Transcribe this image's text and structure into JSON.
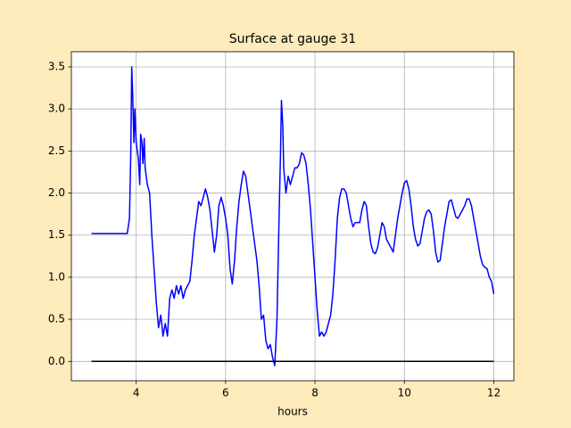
{
  "chart_data": {
    "type": "line",
    "title": "Surface at gauge 31",
    "xlabel": "hours",
    "xlim": [
      2.55,
      12.45
    ],
    "ylim": [
      -0.23,
      3.68
    ],
    "xticks": [
      4,
      6,
      8,
      10,
      12
    ],
    "yticks": [
      {
        "value": 0,
        "label": "0.0"
      },
      {
        "value": 0.5,
        "label": "0.5"
      },
      {
        "value": 1,
        "label": "1.0"
      },
      {
        "value": 1.5,
        "label": "1.5"
      },
      {
        "value": 2,
        "label": "2.0"
      },
      {
        "value": 2.5,
        "label": "2.5"
      },
      {
        "value": 3,
        "label": "3.0"
      },
      {
        "value": 3.5,
        "label": "3.5"
      }
    ],
    "grid": true,
    "series": [
      {
        "color": "#0000ff",
        "x": [
          3.0,
          3.5,
          3.8,
          3.85,
          3.88,
          3.9,
          3.92,
          3.95,
          3.97,
          4.0,
          4.05,
          4.08,
          4.1,
          4.13,
          4.15,
          4.18,
          4.2,
          4.25,
          4.3,
          4.35,
          4.4,
          4.45,
          4.5,
          4.55,
          4.6,
          4.65,
          4.7,
          4.75,
          4.8,
          4.85,
          4.9,
          4.95,
          5.0,
          5.05,
          5.1,
          5.15,
          5.2,
          5.25,
          5.3,
          5.35,
          5.4,
          5.45,
          5.5,
          5.55,
          5.6,
          5.65,
          5.7,
          5.75,
          5.8,
          5.85,
          5.9,
          5.95,
          6.0,
          6.05,
          6.1,
          6.15,
          6.2,
          6.25,
          6.3,
          6.35,
          6.4,
          6.45,
          6.5,
          6.55,
          6.6,
          6.65,
          6.7,
          6.75,
          6.8,
          6.85,
          6.9,
          6.95,
          7.0,
          7.05,
          7.1,
          7.15,
          7.2,
          7.23,
          7.25,
          7.28,
          7.3,
          7.35,
          7.4,
          7.45,
          7.5,
          7.55,
          7.6,
          7.65,
          7.7,
          7.75,
          7.8,
          7.85,
          7.9,
          7.95,
          8.0,
          8.05,
          8.1,
          8.15,
          8.2,
          8.25,
          8.3,
          8.35,
          8.4,
          8.45,
          8.5,
          8.55,
          8.6,
          8.65,
          8.7,
          8.75,
          8.8,
          8.85,
          8.9,
          8.95,
          9.0,
          9.05,
          9.1,
          9.15,
          9.2,
          9.25,
          9.3,
          9.35,
          9.4,
          9.45,
          9.5,
          9.55,
          9.6,
          9.65,
          9.7,
          9.75,
          9.8,
          9.85,
          9.9,
          9.95,
          10.0,
          10.05,
          10.1,
          10.15,
          10.2,
          10.25,
          10.3,
          10.35,
          10.4,
          10.45,
          10.5,
          10.55,
          10.6,
          10.65,
          10.7,
          10.75,
          10.8,
          10.85,
          10.9,
          10.95,
          11.0,
          11.05,
          11.1,
          11.15,
          11.2,
          11.25,
          11.3,
          11.35,
          11.4,
          11.45,
          11.5,
          11.55,
          11.6,
          11.65,
          11.7,
          11.75,
          11.8,
          11.85,
          11.9,
          11.95,
          12.0
        ],
        "values": [
          1.52,
          1.52,
          1.52,
          1.7,
          2.5,
          3.5,
          3.2,
          2.6,
          3.0,
          2.6,
          2.4,
          2.1,
          2.7,
          2.6,
          2.35,
          2.65,
          2.3,
          2.1,
          2.0,
          1.5,
          1.1,
          0.7,
          0.4,
          0.55,
          0.3,
          0.45,
          0.3,
          0.75,
          0.85,
          0.75,
          0.9,
          0.8,
          0.9,
          0.75,
          0.85,
          0.9,
          0.95,
          1.2,
          1.5,
          1.7,
          1.9,
          1.85,
          1.95,
          2.05,
          1.95,
          1.8,
          1.55,
          1.3,
          1.5,
          1.85,
          1.95,
          1.85,
          1.7,
          1.5,
          1.1,
          0.92,
          1.2,
          1.6,
          1.9,
          2.1,
          2.26,
          2.2,
          2.0,
          1.8,
          1.6,
          1.4,
          1.2,
          0.9,
          0.5,
          0.55,
          0.25,
          0.15,
          0.2,
          0.05,
          -0.05,
          0.5,
          1.8,
          2.5,
          3.1,
          2.8,
          2.3,
          2.0,
          2.2,
          2.1,
          2.2,
          2.3,
          2.3,
          2.35,
          2.48,
          2.45,
          2.35,
          2.1,
          1.8,
          1.4,
          1.0,
          0.6,
          0.3,
          0.35,
          0.3,
          0.35,
          0.45,
          0.55,
          0.8,
          1.2,
          1.7,
          1.95,
          2.05,
          2.05,
          2.0,
          1.85,
          1.7,
          1.6,
          1.65,
          1.65,
          1.65,
          1.8,
          1.9,
          1.85,
          1.6,
          1.4,
          1.3,
          1.28,
          1.35,
          1.5,
          1.65,
          1.6,
          1.45,
          1.4,
          1.35,
          1.3,
          1.5,
          1.7,
          1.85,
          2.0,
          2.12,
          2.15,
          2.05,
          1.85,
          1.6,
          1.45,
          1.37,
          1.4,
          1.55,
          1.7,
          1.78,
          1.8,
          1.75,
          1.55,
          1.3,
          1.18,
          1.2,
          1.4,
          1.6,
          1.75,
          1.9,
          1.92,
          1.82,
          1.72,
          1.7,
          1.75,
          1.8,
          1.85,
          1.93,
          1.93,
          1.85,
          1.7,
          1.55,
          1.4,
          1.25,
          1.15,
          1.12,
          1.1,
          1.0,
          0.95,
          0.8
        ]
      },
      {
        "color": "#000000",
        "x": [
          3,
          12
        ],
        "values": [
          0,
          0
        ]
      }
    ]
  }
}
